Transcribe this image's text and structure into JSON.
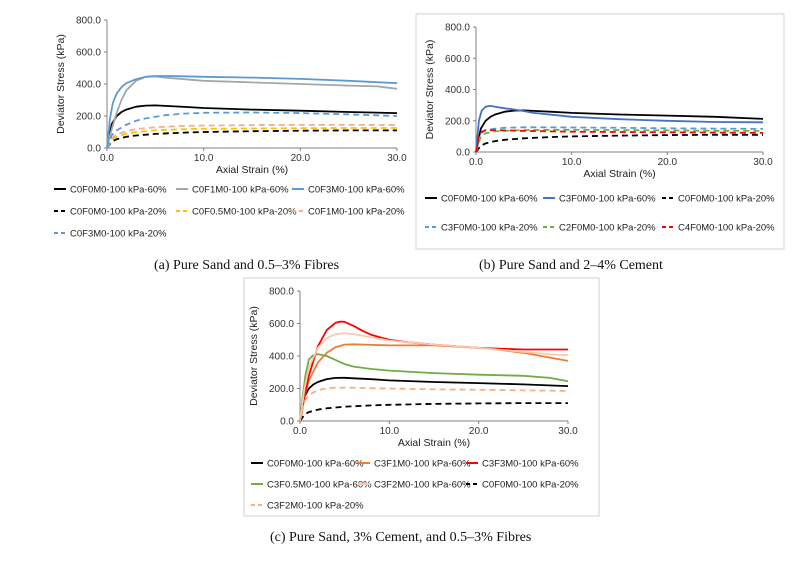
{
  "chart_data": [
    {
      "id": "a",
      "type": "line",
      "caption": "(a) Pure Sand and 0.5–3% Fibres",
      "xlabel": "Axial Strain (%)",
      "ylabel": "Deviator Stress (kPa)",
      "xlim": [
        0,
        30
      ],
      "ylim": [
        0,
        800
      ],
      "xticks": [
        "0.0",
        "10.0",
        "20.0",
        "30.0"
      ],
      "yticks": [
        "0.0",
        "200.0",
        "400.0",
        "600.0",
        "800.0"
      ],
      "series": [
        {
          "name": "C0F0M0-100 kPa-60%",
          "color": "#000000",
          "dash": "solid",
          "x": [
            0,
            0.5,
            1,
            1.5,
            2,
            3,
            4,
            5,
            6,
            8,
            10,
            15,
            20,
            25,
            30
          ],
          "y": [
            0,
            150,
            200,
            225,
            240,
            258,
            265,
            266,
            263,
            257,
            250,
            240,
            233,
            225,
            218
          ]
        },
        {
          "name": "C0F1M0-100 kPa-60%",
          "color": "#a6a6a6",
          "dash": "solid",
          "x": [
            0,
            0.5,
            1,
            1.5,
            2,
            3,
            4,
            5,
            6,
            8,
            10,
            15,
            20,
            25,
            28,
            30
          ],
          "y": [
            0,
            120,
            220,
            300,
            360,
            420,
            445,
            448,
            440,
            430,
            420,
            410,
            400,
            390,
            385,
            370
          ]
        },
        {
          "name": "C0F3M0-100 kPa-60%",
          "color": "#5b9bd5",
          "dash": "solid",
          "x": [
            0,
            0.3,
            0.6,
            1,
            1.5,
            2,
            3,
            4,
            5,
            6,
            8,
            10,
            15,
            20,
            25,
            30
          ],
          "y": [
            0,
            180,
            280,
            340,
            380,
            405,
            430,
            445,
            450,
            450,
            448,
            445,
            440,
            432,
            420,
            405
          ]
        },
        {
          "name": "C0F0M0-100 kPa-20%",
          "color": "#000000",
          "dash": "dash",
          "x": [
            0,
            0.5,
            1,
            2,
            3,
            5,
            8,
            10,
            15,
            20,
            25,
            30
          ],
          "y": [
            0,
            40,
            55,
            70,
            78,
            88,
            96,
            100,
            105,
            108,
            110,
            110
          ]
        },
        {
          "name": "C0F0.5M0-100 kPa-20%",
          "color": "#ffc000",
          "dash": "dash",
          "x": [
            0,
            0.5,
            1,
            2,
            3,
            5,
            8,
            10,
            15,
            20,
            25,
            30
          ],
          "y": [
            0,
            50,
            70,
            90,
            100,
            110,
            118,
            120,
            122,
            124,
            125,
            125
          ]
        },
        {
          "name": "C0F1M0-100 kPa-20%",
          "color": "#f4b183",
          "dash": "dash",
          "x": [
            0,
            0.5,
            1,
            2,
            3,
            5,
            8,
            10,
            15,
            20,
            25,
            30
          ],
          "y": [
            0,
            60,
            85,
            105,
            118,
            130,
            138,
            140,
            143,
            144,
            145,
            143
          ]
        },
        {
          "name": "C0F3M0-100 kPa-20%",
          "color": "#5b9bd5",
          "dash": "dash",
          "x": [
            0,
            0.5,
            1,
            2,
            3,
            4,
            6,
            8,
            10,
            15,
            20,
            25,
            30
          ],
          "y": [
            0,
            80,
            110,
            145,
            170,
            185,
            205,
            215,
            220,
            222,
            218,
            210,
            200
          ]
        }
      ]
    },
    {
      "id": "b",
      "type": "line",
      "caption": "(b) Pure Sand and 2–4% Cement",
      "xlabel": "Axial Strain (%)",
      "ylabel": "Deviator Stress (kPa)",
      "xlim": [
        0,
        30
      ],
      "ylim": [
        0,
        800
      ],
      "xticks": [
        "0.0",
        "10.0",
        "20.0",
        "30.0"
      ],
      "yticks": [
        "0.0",
        "200.0",
        "400.0",
        "600.0",
        "800.0"
      ],
      "series": [
        {
          "name": "C0F0M0-100 kPa-60%",
          "color": "#000000",
          "dash": "solid",
          "x": [
            0,
            0.5,
            1,
            1.5,
            2,
            3,
            4,
            5,
            6,
            8,
            10,
            15,
            20,
            25,
            30
          ],
          "y": [
            0,
            150,
            200,
            225,
            240,
            258,
            265,
            266,
            263,
            257,
            250,
            240,
            233,
            225,
            212
          ]
        },
        {
          "name": "C3F0M0-100 kPa-60%",
          "color": "#4472c4",
          "dash": "solid",
          "x": [
            0,
            0.3,
            0.6,
            1,
            1.5,
            2,
            3,
            4,
            5,
            6,
            8,
            10,
            15,
            20,
            25,
            30
          ],
          "y": [
            0,
            200,
            265,
            290,
            295,
            290,
            280,
            272,
            262,
            250,
            238,
            225,
            210,
            200,
            192,
            190
          ]
        },
        {
          "name": "C0F0M0-100 kPa-20%",
          "color": "#000000",
          "dash": "dash",
          "x": [
            0,
            0.5,
            1,
            2,
            3,
            5,
            8,
            10,
            15,
            20,
            25,
            30
          ],
          "y": [
            0,
            40,
            55,
            70,
            78,
            88,
            96,
            100,
            105,
            108,
            110,
            110
          ]
        },
        {
          "name": "C3F0M0-100 kPa-20%",
          "color": "#5b9bd5",
          "dash": "dash",
          "x": [
            0,
            0.5,
            1,
            2,
            3,
            5,
            8,
            10,
            15,
            20,
            25,
            30
          ],
          "y": [
            0,
            120,
            140,
            150,
            155,
            158,
            158,
            157,
            155,
            152,
            150,
            148
          ]
        },
        {
          "name": "C2F0M0-100 kPa-20%",
          "color": "#70ad47",
          "dash": "dash",
          "x": [
            0,
            0.5,
            1,
            2,
            3,
            5,
            8,
            10,
            15,
            20,
            25,
            30
          ],
          "y": [
            0,
            100,
            120,
            132,
            136,
            140,
            142,
            142,
            140,
            138,
            136,
            135
          ]
        },
        {
          "name": "C4F0M0-100 kPa-20%",
          "color": "#ff0000",
          "dash": "dash",
          "x": [
            0,
            0.3,
            0.6,
            1,
            2,
            3,
            5,
            8,
            10,
            15,
            20,
            25,
            30
          ],
          "y": [
            0,
            110,
            130,
            138,
            140,
            138,
            135,
            132,
            130,
            128,
            126,
            124,
            122
          ]
        }
      ]
    },
    {
      "id": "c",
      "type": "line",
      "caption": "(c)   Pure Sand, 3% Cement, and 0.5–3% Fibres",
      "xlabel": "Axial Strain (%)",
      "ylabel": "Deviator Stress (kPa)",
      "xlim": [
        0,
        30
      ],
      "ylim": [
        0,
        800
      ],
      "xticks": [
        "0.0",
        "10.0",
        "20.0",
        "30.0"
      ],
      "yticks": [
        "0.0",
        "200.0",
        "400.0",
        "600.0",
        "800.0"
      ],
      "series": [
        {
          "name": "C0F0M0-100 kPa-60%",
          "color": "#000000",
          "dash": "solid",
          "x": [
            0,
            0.5,
            1,
            1.5,
            2,
            3,
            4,
            5,
            6,
            8,
            10,
            15,
            20,
            25,
            30
          ],
          "y": [
            0,
            150,
            200,
            225,
            240,
            258,
            265,
            266,
            263,
            257,
            250,
            240,
            233,
            225,
            215
          ]
        },
        {
          "name": "C3F1M0-100 kPa-60%",
          "color": "#ed7d31",
          "dash": "solid",
          "x": [
            0,
            0.5,
            1,
            2,
            3,
            4,
            5,
            6,
            8,
            10,
            15,
            20,
            22,
            25,
            28,
            30
          ],
          "y": [
            0,
            150,
            250,
            360,
            420,
            455,
            470,
            472,
            468,
            465,
            465,
            450,
            440,
            420,
            390,
            370
          ]
        },
        {
          "name": "C3F3M0-100 kPa-60%",
          "color": "#ff0000",
          "dash": "solid",
          "x": [
            0,
            0.5,
            1,
            2,
            3,
            4,
            4.5,
            5,
            6,
            7,
            8,
            10,
            12,
            15,
            20,
            25,
            30
          ],
          "y": [
            0,
            150,
            280,
            460,
            560,
            605,
            612,
            610,
            585,
            555,
            530,
            500,
            485,
            470,
            450,
            440,
            440
          ]
        },
        {
          "name": "C3F0.5M0-100 kPa-60%",
          "color": "#70ad47",
          "dash": "solid",
          "x": [
            0,
            0.3,
            0.6,
            1,
            1.5,
            2,
            3,
            4,
            5,
            6,
            8,
            10,
            15,
            20,
            25,
            28,
            30
          ],
          "y": [
            0,
            150,
            280,
            380,
            405,
            412,
            400,
            375,
            350,
            335,
            320,
            310,
            295,
            285,
            278,
            265,
            245
          ]
        },
        {
          "name": "C3F2M0-100 kPa-60%",
          "color": "#f8cbad",
          "dash": "solid",
          "x": [
            0,
            0.5,
            1,
            2,
            3,
            4,
            5,
            6,
            8,
            10,
            15,
            20,
            25,
            28,
            30
          ],
          "y": [
            0,
            200,
            330,
            450,
            510,
            535,
            540,
            535,
            515,
            495,
            470,
            450,
            425,
            410,
            405
          ]
        },
        {
          "name": "C0F0M0-100 kPa-20%",
          "color": "#000000",
          "dash": "dash",
          "x": [
            0,
            0.5,
            1,
            2,
            3,
            5,
            8,
            10,
            15,
            20,
            25,
            30
          ],
          "y": [
            0,
            40,
            55,
            70,
            78,
            88,
            96,
            100,
            105,
            108,
            110,
            110
          ]
        },
        {
          "name": "C3F2M0-100 kPa-20%",
          "color": "#f4b183",
          "dash": "dash",
          "x": [
            0,
            0.5,
            1,
            2,
            3,
            4,
            6,
            8,
            10,
            15,
            20,
            25,
            30
          ],
          "y": [
            0,
            120,
            160,
            190,
            202,
            205,
            205,
            202,
            200,
            195,
            192,
            188,
            185
          ]
        }
      ]
    }
  ]
}
